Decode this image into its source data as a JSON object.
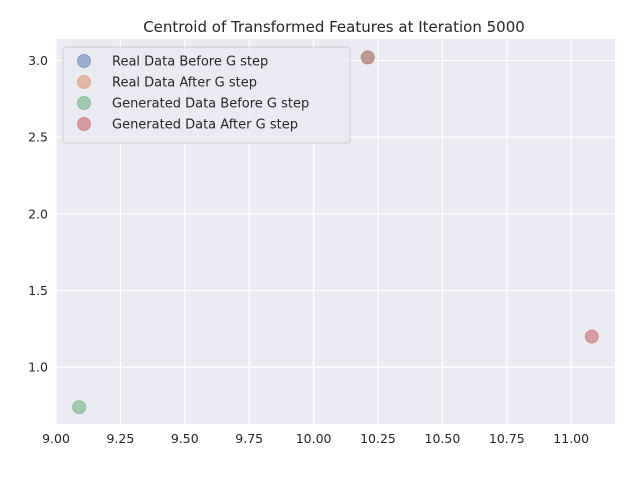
{
  "chart_data": {
    "type": "scatter",
    "title": "Centroid of Transformed Features at Iteration 5000",
    "xlabel": "",
    "ylabel": "",
    "xlim": [
      9.0,
      11.17
    ],
    "ylim": [
      0.63,
      3.14
    ],
    "x_ticks": [
      "9.00",
      "9.25",
      "9.50",
      "9.75",
      "10.00",
      "10.25",
      "10.50",
      "10.75",
      "11.00"
    ],
    "y_ticks": [
      "1.0",
      "1.5",
      "2.0",
      "2.5",
      "3.0"
    ],
    "grid": true,
    "legend_position": "top-left",
    "series": [
      {
        "name": "Real Data Before G step",
        "color": "#4c72b0",
        "points": [
          {
            "x": 10.21,
            "y": 3.02
          }
        ]
      },
      {
        "name": "Real Data After G step",
        "color": "#dd8452",
        "points": [
          {
            "x": 10.21,
            "y": 3.02
          }
        ]
      },
      {
        "name": "Generated Data Before G step",
        "color": "#55a868",
        "points": [
          {
            "x": 9.09,
            "y": 0.74
          }
        ]
      },
      {
        "name": "Generated Data After G step",
        "color": "#c44e52",
        "points": [
          {
            "x": 11.08,
            "y": 1.2
          }
        ]
      }
    ]
  }
}
